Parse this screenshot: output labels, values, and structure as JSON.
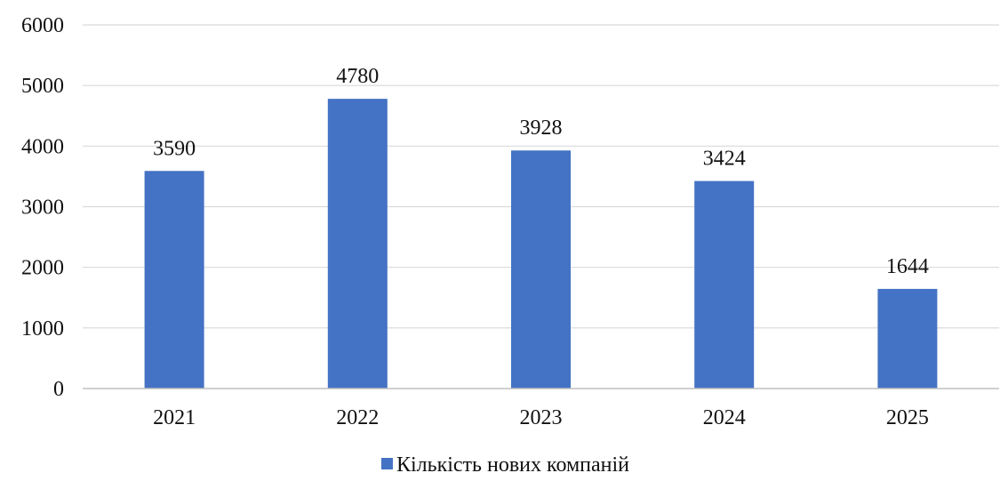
{
  "chart_data": {
    "type": "bar",
    "title": "",
    "xlabel": "",
    "ylabel": "",
    "categories": [
      "2021",
      "2022",
      "2023",
      "2024",
      "2025"
    ],
    "series": [
      {
        "name": "Кількість нових компаній",
        "values": [
          3590,
          4780,
          3928,
          3424,
          1644
        ],
        "color": "#4472C4"
      }
    ],
    "ylim": [
      0,
      6000
    ],
    "yticks": [
      "0",
      "1000",
      "2000",
      "3000",
      "4000",
      "5000",
      "6000"
    ],
    "grid": true,
    "legend": "bottom-center"
  }
}
